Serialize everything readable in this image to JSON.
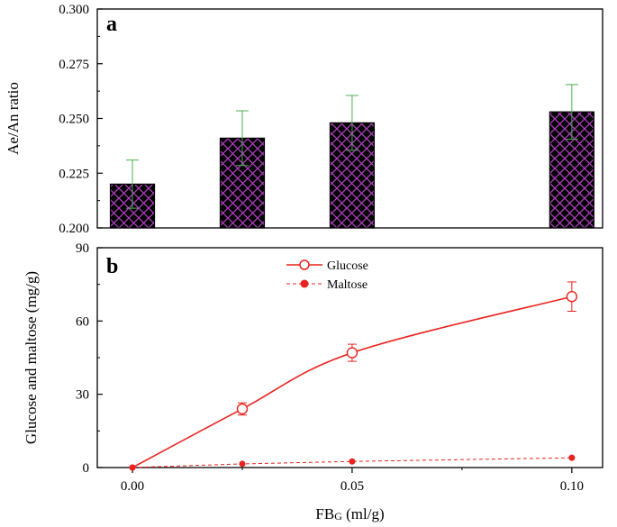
{
  "chart_data": [
    {
      "type": "bar",
      "panel_label": "a",
      "ylabel": "Ae/An ratio",
      "ylim": [
        0.2,
        0.3
      ],
      "yticks": [
        0.2,
        0.225,
        0.25,
        0.275,
        0.3
      ],
      "ytick_labels": [
        "0.200",
        "0.225",
        "0.250",
        "0.275",
        "0.300"
      ],
      "x": [
        0.0,
        0.025,
        0.05,
        0.1
      ],
      "values": [
        0.22,
        0.241,
        0.248,
        0.253
      ],
      "errors": [
        0.011,
        0.0125,
        0.0125,
        0.0125
      ],
      "bar_fill": "#000000",
      "hatch_color": "#b040c0",
      "error_color": "#4caf50"
    },
    {
      "type": "line",
      "panel_label": "b",
      "ylabel": "Glucose and maltose (mg/g)",
      "ylim": [
        0,
        90
      ],
      "yticks": [
        0,
        30,
        60,
        90
      ],
      "ytick_labels": [
        "0",
        "30",
        "60",
        "90"
      ],
      "xlim": [
        -0.008,
        0.107
      ],
      "xticks": [
        0.0,
        0.05,
        0.1
      ],
      "xtick_labels": [
        "0.00",
        "0.05",
        "0.10"
      ],
      "xlabel_main": "FB",
      "xlabel_sub": "G",
      "xlabel_unit": " (ml/g)",
      "series": [
        {
          "name": "Glucose",
          "style": "solid-open-circle",
          "color": "#e8231f",
          "x": [
            0.0,
            0.025,
            0.05,
            0.1
          ],
          "values": [
            0.0,
            24.0,
            47.0,
            70.0
          ],
          "errors": [
            0,
            2.5,
            3.5,
            6.0
          ]
        },
        {
          "name": "Maltose",
          "style": "dashed-filled-circle",
          "color": "#e8231f",
          "x": [
            0.0,
            0.025,
            0.05,
            0.1
          ],
          "values": [
            0.0,
            1.5,
            2.5,
            4.0
          ],
          "errors": [
            0,
            0,
            0,
            0
          ]
        }
      ]
    }
  ]
}
